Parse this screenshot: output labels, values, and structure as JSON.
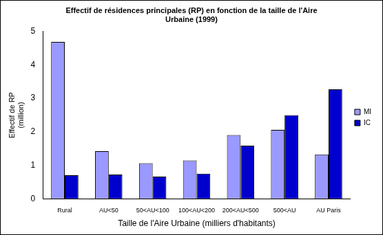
{
  "chart_data": {
    "type": "bar",
    "title": [
      "Effectif de résidences principales (RP) en fonction de la taille de l'Aire",
      "Urbaine (1999)"
    ],
    "x_label": "Taille de l'Aire Urbaine (milliers d'habitants)",
    "y_label": [
      "Effectif de RP",
      "(million)"
    ],
    "categories": [
      "Rural",
      "AU<50",
      "50<AU<100",
      "100<AU<200",
      "200<AU<500",
      "500<AU",
      "AU Paris"
    ],
    "series": [
      {
        "name": "MI",
        "color": "#9999ff",
        "values": [
          4.68,
          1.43,
          1.07,
          1.15,
          1.91,
          2.06,
          1.33
        ]
      },
      {
        "name": "IC",
        "color": "#0000cc",
        "values": [
          0.71,
          0.73,
          0.67,
          0.76,
          1.59,
          2.5,
          3.27
        ]
      }
    ],
    "ylim": [
      0,
      5
    ],
    "yticks": [
      0,
      1,
      2,
      3,
      4,
      5
    ],
    "grid": false,
    "legend": "right"
  }
}
